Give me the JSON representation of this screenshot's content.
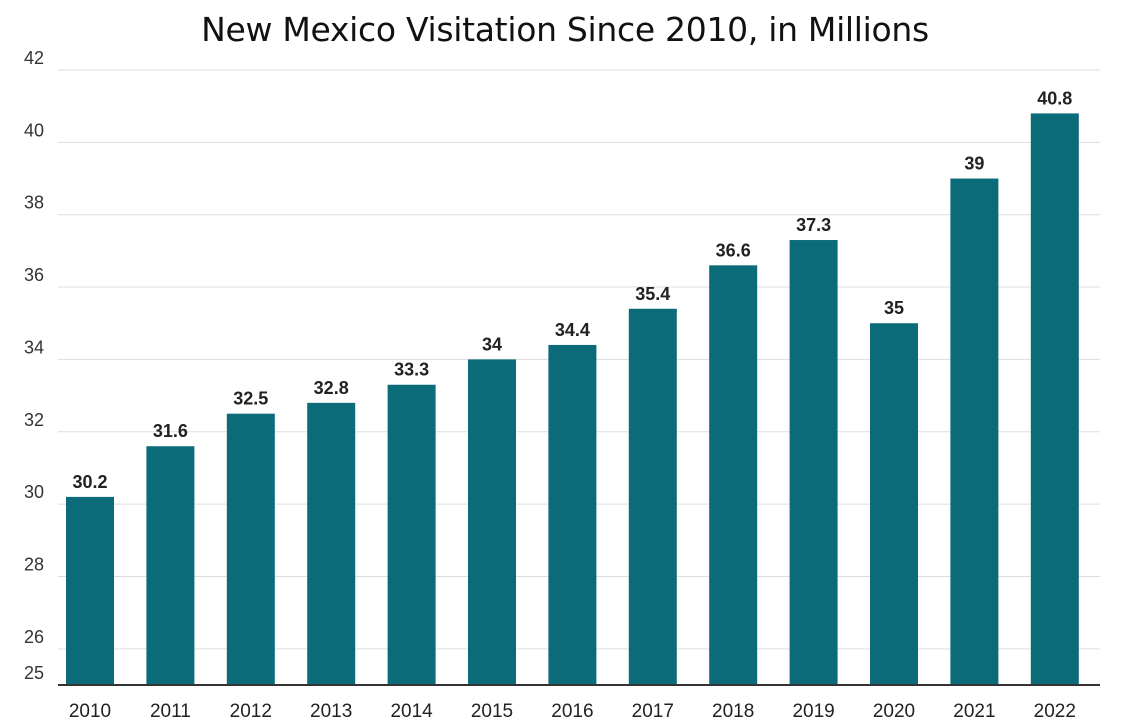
{
  "chart_data": {
    "type": "bar",
    "title": "New Mexico Visitation Since 2010, in Millions",
    "categories": [
      "2010",
      "2011",
      "2012",
      "2013",
      "2014",
      "2015",
      "2016",
      "2017",
      "2018",
      "2019",
      "2020",
      "2021",
      "2022"
    ],
    "values": [
      30.2,
      31.6,
      32.5,
      32.8,
      33.3,
      34,
      34.4,
      35.4,
      36.6,
      37.3,
      35,
      39,
      40.8
    ],
    "data_labels": [
      "30.2",
      "31.6",
      "32.5",
      "32.8",
      "33.3",
      "34",
      "34.4",
      "35.4",
      "36.6",
      "37.3",
      "35",
      "39",
      "40.8"
    ],
    "y_ticks": [
      25,
      26,
      28,
      30,
      32,
      34,
      36,
      38,
      40,
      42
    ],
    "ylim": [
      25,
      42
    ],
    "xlabel": "",
    "ylabel": "",
    "grid": true,
    "legend": "none",
    "bar_color": "#0b6b78"
  }
}
